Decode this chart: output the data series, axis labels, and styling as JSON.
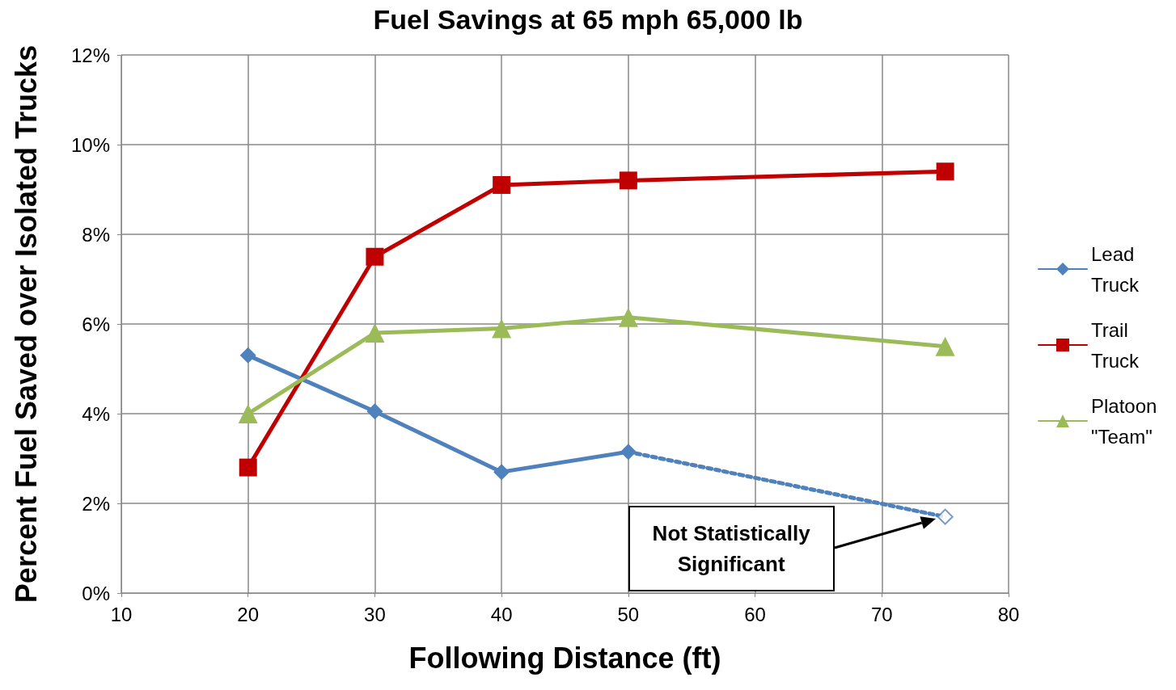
{
  "chart_data": {
    "type": "line",
    "title": "Fuel Savings at 65 mph 65,000 lb",
    "xlabel": "Following Distance (ft)",
    "ylabel": "Percent Fuel Saved over Isolated Trucks",
    "xlim": [
      10,
      80
    ],
    "xticks": [
      10,
      20,
      30,
      40,
      50,
      60,
      70,
      80
    ],
    "ylim": [
      0,
      12
    ],
    "yticks": [
      {
        "value": 0,
        "label": "0%"
      },
      {
        "value": 2,
        "label": "2%"
      },
      {
        "value": 4,
        "label": "4%"
      },
      {
        "value": 6,
        "label": "6%"
      },
      {
        "value": 8,
        "label": "8%"
      },
      {
        "value": 10,
        "label": "10%"
      },
      {
        "value": 12,
        "label": "12%"
      }
    ],
    "grid": true,
    "legend": "right",
    "series": [
      {
        "name": "Lead Truck",
        "color": "#4f81bd",
        "marker": "diamond",
        "line_style": "solid",
        "x": [
          20,
          30,
          40,
          50
        ],
        "values": [
          5.3,
          4.05,
          2.7,
          3.15
        ]
      },
      {
        "name": "Trail Truck",
        "color": "#c00000",
        "marker": "square",
        "line_style": "solid",
        "x": [
          20,
          30,
          40,
          50,
          75
        ],
        "values": [
          2.8,
          7.5,
          9.1,
          9.2,
          9.4
        ]
      },
      {
        "name": "Platoon \"Team\"",
        "color": "#9bbb59",
        "marker": "triangle",
        "line_style": "solid",
        "x": [
          20,
          30,
          40,
          50,
          75
        ],
        "values": [
          4.0,
          5.8,
          5.9,
          6.15,
          5.5
        ]
      },
      {
        "color": "#4f81bd",
        "marker": "none",
        "line_style": "dotted",
        "x": [
          50,
          75
        ],
        "values": [
          3.15,
          1.7
        ]
      },
      {
        "color": "#4f81bd",
        "marker": "diamond",
        "x": [
          75
        ],
        "values": [
          1.7
        ],
        "type": "scatter"
      }
    ],
    "annotations": [
      "Not Statistically Significant"
    ]
  }
}
